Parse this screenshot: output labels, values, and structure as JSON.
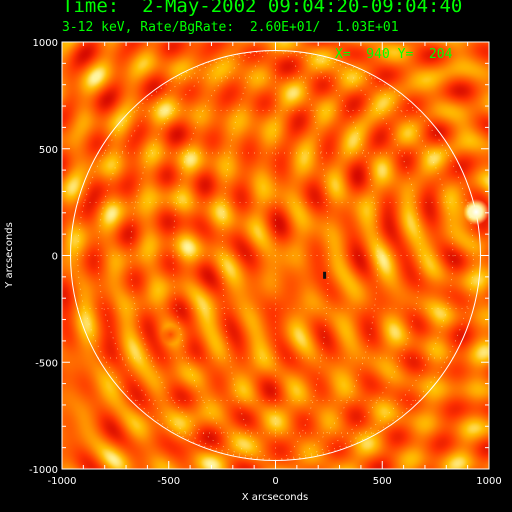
{
  "header": {
    "title": "Time:  2-May-2002 09:04:20-09:04:40",
    "subtitle": "3-12 keV, Rate/BgRate:  2.60E+01/  1.03E+01"
  },
  "colors": {
    "background": "#000000",
    "text": "#00ff00",
    "axis": "#ffffff",
    "colormap_low": "#ff2a00",
    "colormap_mid": "#ff9a00",
    "colormap_high": "#fff2a0"
  },
  "chart_data": {
    "type": "heatmap",
    "title": "Time:  2-May-2002 09:04:20-09:04:40",
    "subtitle": "3-12 keV, Rate/BgRate:  2.60E+01/  1.03E+01",
    "xlabel": "X arcseconds",
    "ylabel": "Y arcseconds",
    "xlim": [
      -1000,
      1000
    ],
    "ylim": [
      -1000,
      1000
    ],
    "xticks": [
      -1000,
      -500,
      0,
      500,
      1000
    ],
    "yticks": [
      -1000,
      -500,
      0,
      500,
      1000
    ],
    "cursor_readout": "X=  940 Y=  204",
    "solar_disk": {
      "center": [
        0,
        0
      ],
      "radius": 960
    },
    "grid": true,
    "sources": [
      {
        "x": 940,
        "y": 204,
        "kind": "bright"
      },
      {
        "x": 230,
        "y": -95,
        "kind": "marker"
      }
    ],
    "dark_centers": [
      {
        "x": -490,
        "y": -370
      },
      {
        "x": 940,
        "y": 204
      }
    ]
  }
}
